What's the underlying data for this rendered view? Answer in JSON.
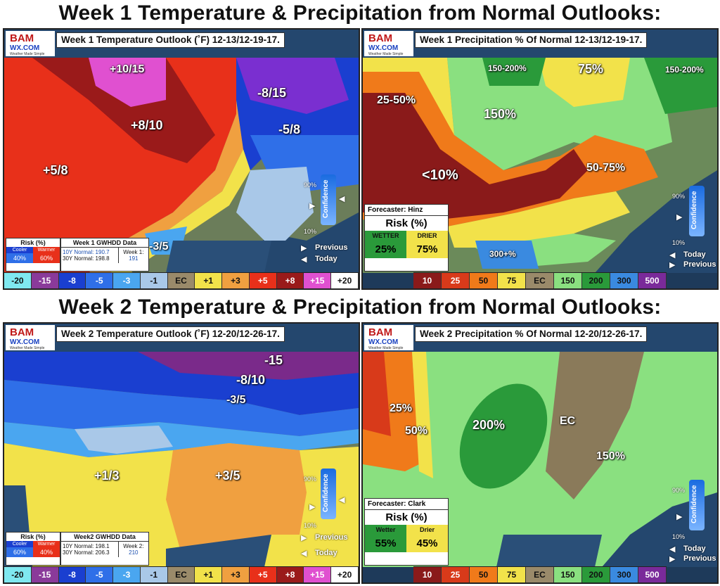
{
  "week1_title": "Week 1 Temperature & Precipitation from Normal Outlooks:",
  "week2_title": "Week 2 Temperature & Precipitation from Normal Outlooks:",
  "logo": {
    "brand": "BAM",
    "site": "WX.COM",
    "tagline": "Weather Made Simple"
  },
  "panels": {
    "w1t": {
      "header": "Week 1 Temperature Outlook (˚F) 12-13/12-19-17.",
      "labels": [
        "+10/15",
        "+8/10",
        "-8/15",
        "-5/8",
        "+5/8",
        "-3/5"
      ],
      "risk": {
        "title": "Risk (%)",
        "cooler": "Cooler",
        "warmer": "Warmer",
        "cooler_val": "40%",
        "warmer_val": "60%"
      },
      "gwhdd": {
        "title": "Week 1 GWHDD Data",
        "n10": "10Y Normal: 190.7",
        "n30": "30Y Normal: 198.8",
        "wk_label": "Week 1:",
        "wk_val": "191"
      },
      "conf": {
        "hi": "90%",
        "lo": "10%",
        "word": "Confidence",
        "previous": "Previous",
        "today": "Today"
      }
    },
    "w1p": {
      "header": "Week 1 Precipitation % Of Normal 12-13/12-19-17.",
      "labels": [
        "150-200%",
        "75%",
        "150-200%",
        "25-50%",
        "150%",
        "<10%",
        "50-75%",
        "300+%"
      ],
      "forecaster": "Forecaster: Hinz",
      "risk_title": "Risk (%)",
      "wetter": "WETTER",
      "drier": "DRIER",
      "wetter_val": "25%",
      "drier_val": "75%",
      "conf": {
        "hi": "90%",
        "lo": "10%",
        "word": "Confidence",
        "today": "Today",
        "previous": "Previous"
      }
    },
    "w2t": {
      "header": "Week 2 Temperature Outlook (˚F) 12-20/12-26-17.",
      "labels": [
        "-15",
        "-8/10",
        "-3/5",
        "+1/3",
        "+3/5"
      ],
      "risk": {
        "title": "Risk (%)",
        "cooler": "Cooler",
        "warmer": "Warmer",
        "cooler_val": "60%",
        "warmer_val": "40%"
      },
      "gwhdd": {
        "title": "Week2 GWHDD Data",
        "n10": "10Y Normal: 198.1",
        "n30": "30Y Normal: 206.3",
        "wk_label": "Week 2:",
        "wk_val": "210"
      },
      "conf": {
        "hi": "90%",
        "lo": "10%",
        "word": "Confidence",
        "previous": "Previous",
        "today": "Today"
      }
    },
    "w2p": {
      "header": "Week 2 Precipitation % Of Normal 12-20/12-26-17.",
      "labels": [
        "25%",
        "50%",
        "200%",
        "EC",
        "150%"
      ],
      "forecaster": "Forecaster: Clark",
      "risk_title": "Risk (%)",
      "wetter": "Wetter",
      "drier": "Drier",
      "wetter_val": "55%",
      "drier_val": "45%",
      "conf": {
        "hi": "90%",
        "lo": "10%",
        "word": "Confidence",
        "today": "Today",
        "previous": "Previous"
      }
    }
  },
  "temp_legend": [
    {
      "label": "-20",
      "color": "#7fe8f0",
      "text": "#111"
    },
    {
      "label": "-15",
      "color": "#8a3a9a",
      "text": "#fff"
    },
    {
      "label": "-8",
      "color": "#1a3fd0",
      "text": "#fff"
    },
    {
      "label": "-5",
      "color": "#2f6fe8",
      "text": "#fff"
    },
    {
      "label": "-3",
      "color": "#4aa6f0",
      "text": "#fff"
    },
    {
      "label": "-1",
      "color": "#a9c8e8",
      "text": "#111"
    },
    {
      "label": "EC",
      "color": "#9a8a6a",
      "text": "#111"
    },
    {
      "label": "+1",
      "color": "#f2e24a",
      "text": "#111"
    },
    {
      "label": "+3",
      "color": "#f0a040",
      "text": "#111"
    },
    {
      "label": "+5",
      "color": "#e8301a",
      "text": "#fff"
    },
    {
      "label": "+8",
      "color": "#9a1a1a",
      "text": "#fff"
    },
    {
      "label": "+15",
      "color": "#e050d0",
      "text": "#fff"
    },
    {
      "label": "+20",
      "color": "#ffffff",
      "text": "#111"
    }
  ],
  "precip_legend": [
    {
      "label": "10",
      "color": "#8a1a1a",
      "text": "#fff"
    },
    {
      "label": "25",
      "color": "#d83a1a",
      "text": "#fff"
    },
    {
      "label": "50",
      "color": "#f07a1a",
      "text": "#111"
    },
    {
      "label": "75",
      "color": "#f2e24a",
      "text": "#111"
    },
    {
      "label": "EC",
      "color": "#9a8a6a",
      "text": "#111"
    },
    {
      "label": "150",
      "color": "#8ae080",
      "text": "#111"
    },
    {
      "label": "200",
      "color": "#2a9a3a",
      "text": "#111"
    },
    {
      "label": "300",
      "color": "#3a8ae0",
      "text": "#111"
    },
    {
      "label": "500",
      "color": "#7a2a9a",
      "text": "#fff"
    }
  ]
}
